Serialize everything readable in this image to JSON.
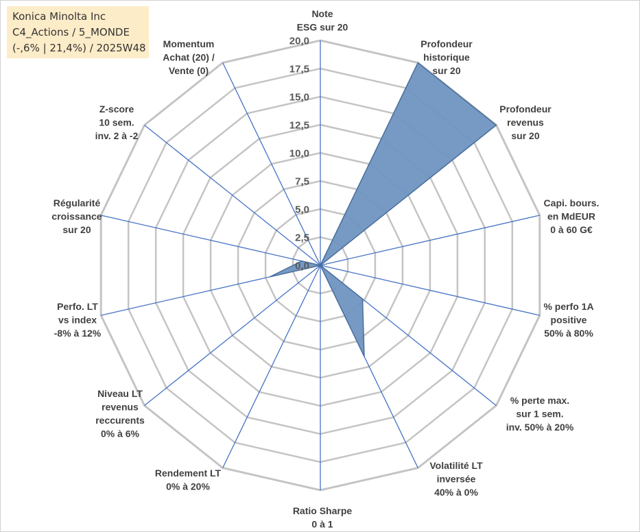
{
  "info_box": {
    "line1": "Konica Minolta Inc",
    "line2": "C4_Actions / 5_MONDE",
    "line3": "(-,6% | 21,4%) / 2025W48"
  },
  "chart_data": {
    "type": "radar",
    "r_range": [
      0,
      20
    ],
    "tick_labels": [
      "0,0",
      "2,5",
      "5,0",
      "7,5",
      "10,0",
      "12,5",
      "15,0",
      "17,5",
      "20,0"
    ],
    "grid": true,
    "axes": [
      {
        "label": [
          "Note",
          "ESG sur 20"
        ]
      },
      {
        "label": [
          "Profondeur",
          "historique",
          "sur 20"
        ]
      },
      {
        "label": [
          "Profondeur",
          "revenus",
          "sur 20"
        ]
      },
      {
        "label": [
          "Capi. bours.",
          "en MdEUR",
          "0 à 60 G€"
        ]
      },
      {
        "label": [
          "% perfo 1A",
          "positive",
          "50% à 80%"
        ]
      },
      {
        "label": [
          "% perte max.",
          "sur 1 sem.",
          "inv. 50% à 20%"
        ]
      },
      {
        "label": [
          "Volatilité LT",
          "inversée",
          "40% à 0%"
        ]
      },
      {
        "label": [
          "Ratio Sharpe",
          "0 à 1"
        ]
      },
      {
        "label": [
          "Rendement LT",
          "0% à 20%"
        ]
      },
      {
        "label": [
          "Niveau LT",
          "revenus",
          "reccurents",
          "0% à 6%"
        ]
      },
      {
        "label": [
          "Perfo. LT",
          "vs index",
          "-8% à 12%"
        ]
      },
      {
        "label": [
          "Régularité",
          "croissance",
          "sur 20"
        ]
      },
      {
        "label": [
          "Z-score",
          "10 sem.",
          "inv. 2 à -2"
        ]
      },
      {
        "label": [
          "Momentum",
          "Achat (20) /",
          "Vente (0)"
        ]
      }
    ],
    "series": [
      {
        "values": [
          0,
          20,
          20,
          0,
          0,
          4.8,
          9,
          0,
          0,
          0,
          4.6,
          1.7,
          0,
          0
        ]
      }
    ],
    "colors": {
      "fill": "#6f95c0",
      "stroke": "#4a6f9c",
      "grid": "#c4c4c4",
      "spoke": "#4472c4"
    }
  }
}
